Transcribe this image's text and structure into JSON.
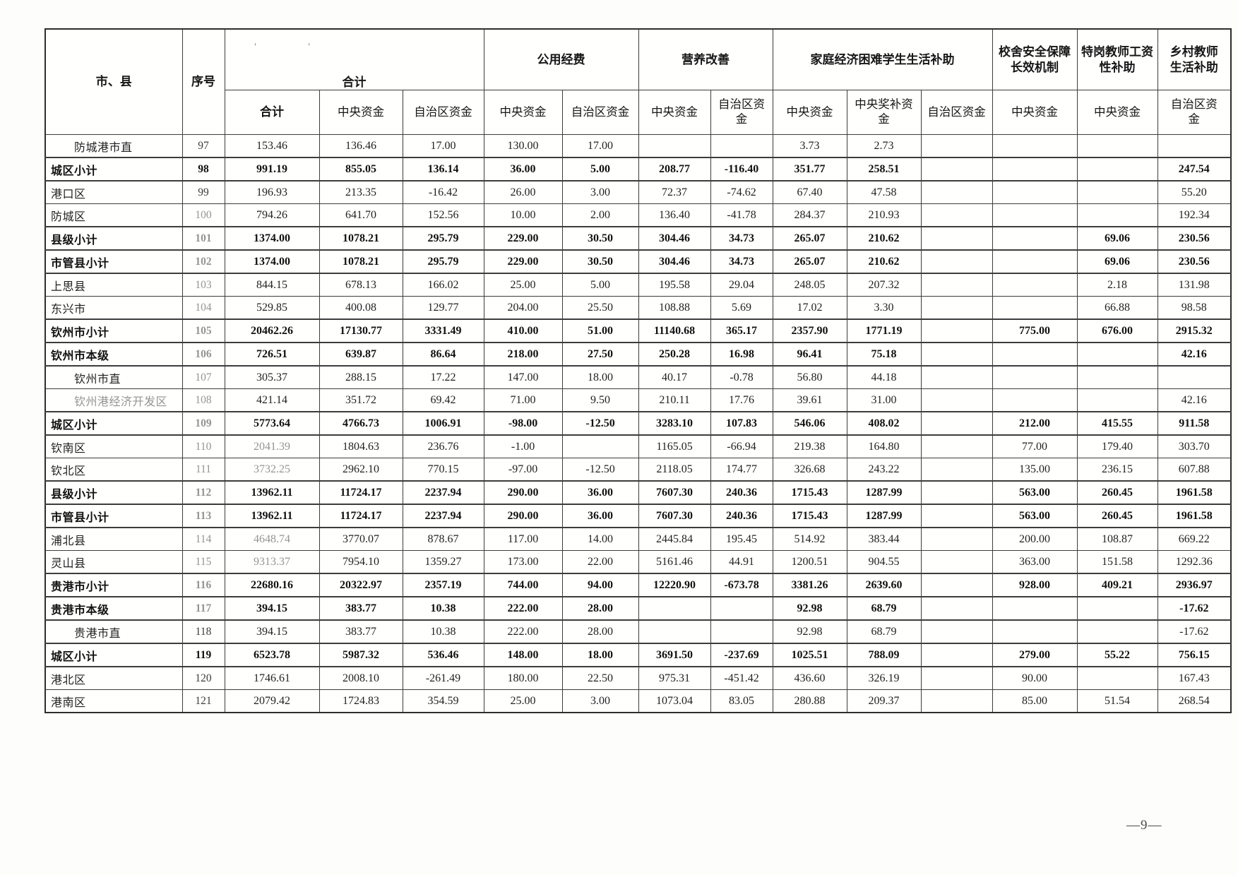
{
  "page": {
    "number": "—9—"
  },
  "header": {
    "region_col": "市、县",
    "seq_col": "序号",
    "tick1": "'",
    "tick2": "'",
    "groups": [
      {
        "label": "合计",
        "cols": 3
      },
      {
        "label": "公用经费",
        "cols": 2
      },
      {
        "label": "营养改善",
        "cols": 2
      },
      {
        "label": "家庭经济困难学生生活补助",
        "cols": 3
      },
      {
        "label": "校舍安全保障\n长效机制",
        "cols": 1
      },
      {
        "label": "特岗教师工资\n性补助",
        "cols": 1
      },
      {
        "label": "乡村教师\n生活补助",
        "cols": 1
      }
    ],
    "sub_labels": [
      "合计",
      "中央资金",
      "自治区资金",
      "中央资金",
      "自治区资金",
      "中央资金",
      "自治区资\n金",
      "中央资金",
      "中央奖补资\n金",
      "自治区资金",
      "中央资金",
      "中央资金",
      "自治区资\n金"
    ]
  },
  "rows": [
    {
      "name": "防城港市直",
      "seq": "97",
      "indent": true,
      "bold": false,
      "faded": [],
      "values": [
        "153.46",
        "136.46",
        "17.00",
        "130.00",
        "17.00",
        "",
        "",
        "3.73",
        "2.73",
        "",
        "",
        "",
        ""
      ]
    },
    {
      "name": "城区小计",
      "seq": "98",
      "indent": false,
      "bold": true,
      "faded": [],
      "values": [
        "991.19",
        "855.05",
        "136.14",
        "36.00",
        "5.00",
        "208.77",
        "-116.40",
        "351.77",
        "258.51",
        "",
        "",
        "",
        "247.54"
      ]
    },
    {
      "name": "港口区",
      "seq": "99",
      "indent": false,
      "bold": false,
      "faded": [],
      "values": [
        "196.93",
        "213.35",
        "-16.42",
        "26.00",
        "3.00",
        "72.37",
        "-74.62",
        "67.40",
        "47.58",
        "",
        "",
        "",
        "55.20"
      ]
    },
    {
      "name": "防城区",
      "seq": "100",
      "indent": false,
      "bold": false,
      "faded": [
        "seq"
      ],
      "values": [
        "794.26",
        "641.70",
        "152.56",
        "10.00",
        "2.00",
        "136.40",
        "-41.78",
        "284.37",
        "210.93",
        "",
        "",
        "",
        "192.34"
      ]
    },
    {
      "name": "县级小计",
      "seq": "101",
      "indent": false,
      "bold": true,
      "faded": [
        "seq"
      ],
      "values": [
        "1374.00",
        "1078.21",
        "295.79",
        "229.00",
        "30.50",
        "304.46",
        "34.73",
        "265.07",
        "210.62",
        "",
        "",
        "69.06",
        "230.56"
      ]
    },
    {
      "name": "市管县小计",
      "seq": "102",
      "indent": false,
      "bold": true,
      "faded": [
        "seq"
      ],
      "values": [
        "1374.00",
        "1078.21",
        "295.79",
        "229.00",
        "30.50",
        "304.46",
        "34.73",
        "265.07",
        "210.62",
        "",
        "",
        "69.06",
        "230.56"
      ]
    },
    {
      "name": "上思县",
      "seq": "103",
      "indent": false,
      "bold": false,
      "faded": [
        "seq"
      ],
      "values": [
        "844.15",
        "678.13",
        "166.02",
        "25.00",
        "5.00",
        "195.58",
        "29.04",
        "248.05",
        "207.32",
        "",
        "",
        "2.18",
        "131.98"
      ]
    },
    {
      "name": "东兴市",
      "seq": "104",
      "indent": false,
      "bold": false,
      "faded": [
        "seq"
      ],
      "values": [
        "529.85",
        "400.08",
        "129.77",
        "204.00",
        "25.50",
        "108.88",
        "5.69",
        "17.02",
        "3.30",
        "",
        "",
        "66.88",
        "98.58"
      ]
    },
    {
      "name": "钦州市小计",
      "seq": "105",
      "indent": false,
      "bold": true,
      "faded": [
        "seq"
      ],
      "values": [
        "20462.26",
        "17130.77",
        "3331.49",
        "410.00",
        "51.00",
        "11140.68",
        "365.17",
        "2357.90",
        "1771.19",
        "",
        "775.00",
        "676.00",
        "2915.32"
      ]
    },
    {
      "name": "钦州市本级",
      "seq": "106",
      "indent": false,
      "bold": true,
      "faded": [
        "seq"
      ],
      "values": [
        "726.51",
        "639.87",
        "86.64",
        "218.00",
        "27.50",
        "250.28",
        "16.98",
        "96.41",
        "75.18",
        "",
        "",
        "",
        "42.16"
      ]
    },
    {
      "name": "钦州市直",
      "seq": "107",
      "indent": true,
      "bold": false,
      "faded": [
        "seq"
      ],
      "values": [
        "305.37",
        "288.15",
        "17.22",
        "147.00",
        "18.00",
        "40.17",
        "-0.78",
        "56.80",
        "44.18",
        "",
        "",
        "",
        ""
      ]
    },
    {
      "name": "钦州港经济开发区",
      "seq": "108",
      "indent": true,
      "bold": false,
      "faded": [
        "seq",
        "name"
      ],
      "values": [
        "421.14",
        "351.72",
        "69.42",
        "71.00",
        "9.50",
        "210.11",
        "17.76",
        "39.61",
        "31.00",
        "",
        "",
        "",
        "42.16"
      ]
    },
    {
      "name": "城区小计",
      "seq": "109",
      "indent": false,
      "bold": true,
      "faded": [
        "seq"
      ],
      "values": [
        "5773.64",
        "4766.73",
        "1006.91",
        "-98.00",
        "-12.50",
        "3283.10",
        "107.83",
        "546.06",
        "408.02",
        "",
        "212.00",
        "415.55",
        "911.58"
      ]
    },
    {
      "name": "钦南区",
      "seq": "110",
      "indent": false,
      "bold": false,
      "faded": [
        "seq",
        "v0"
      ],
      "values": [
        "2041.39",
        "1804.63",
        "236.76",
        "-1.00",
        "",
        "1165.05",
        "-66.94",
        "219.38",
        "164.80",
        "",
        "77.00",
        "179.40",
        "303.70"
      ]
    },
    {
      "name": "钦北区",
      "seq": "111",
      "indent": false,
      "bold": false,
      "faded": [
        "seq",
        "v0"
      ],
      "values": [
        "3732.25",
        "2962.10",
        "770.15",
        "-97.00",
        "-12.50",
        "2118.05",
        "174.77",
        "326.68",
        "243.22",
        "",
        "135.00",
        "236.15",
        "607.88"
      ]
    },
    {
      "name": "县级小计",
      "seq": "112",
      "indent": false,
      "bold": true,
      "faded": [
        "seq"
      ],
      "values": [
        "13962.11",
        "11724.17",
        "2237.94",
        "290.00",
        "36.00",
        "7607.30",
        "240.36",
        "1715.43",
        "1287.99",
        "",
        "563.00",
        "260.45",
        "1961.58"
      ]
    },
    {
      "name": "市管县小计",
      "seq": "113",
      "indent": false,
      "bold": true,
      "faded": [
        "seq"
      ],
      "values": [
        "13962.11",
        "11724.17",
        "2237.94",
        "290.00",
        "36.00",
        "7607.30",
        "240.36",
        "1715.43",
        "1287.99",
        "",
        "563.00",
        "260.45",
        "1961.58"
      ]
    },
    {
      "name": "浦北县",
      "seq": "114",
      "indent": false,
      "bold": false,
      "faded": [
        "seq",
        "v0"
      ],
      "values": [
        "4648.74",
        "3770.07",
        "878.67",
        "117.00",
        "14.00",
        "2445.84",
        "195.45",
        "514.92",
        "383.44",
        "",
        "200.00",
        "108.87",
        "669.22"
      ]
    },
    {
      "name": "灵山县",
      "seq": "115",
      "indent": false,
      "bold": false,
      "faded": [
        "seq",
        "v0"
      ],
      "values": [
        "9313.37",
        "7954.10",
        "1359.27",
        "173.00",
        "22.00",
        "5161.46",
        "44.91",
        "1200.51",
        "904.55",
        "",
        "363.00",
        "151.58",
        "1292.36"
      ]
    },
    {
      "name": "贵港市小计",
      "seq": "116",
      "indent": false,
      "bold": true,
      "faded": [
        "seq"
      ],
      "values": [
        "22680.16",
        "20322.97",
        "2357.19",
        "744.00",
        "94.00",
        "12220.90",
        "-673.78",
        "3381.26",
        "2639.60",
        "",
        "928.00",
        "409.21",
        "2936.97"
      ]
    },
    {
      "name": "贵港市本级",
      "seq": "117",
      "indent": false,
      "bold": true,
      "faded": [
        "seq"
      ],
      "values": [
        "394.15",
        "383.77",
        "10.38",
        "222.00",
        "28.00",
        "",
        "",
        "92.98",
        "68.79",
        "",
        "",
        "",
        "-17.62"
      ]
    },
    {
      "name": "贵港市直",
      "seq": "118",
      "indent": true,
      "bold": false,
      "faded": [],
      "values": [
        "394.15",
        "383.77",
        "10.38",
        "222.00",
        "28.00",
        "",
        "",
        "92.98",
        "68.79",
        "",
        "",
        "",
        "-17.62"
      ]
    },
    {
      "name": "城区小计",
      "seq": "119",
      "indent": false,
      "bold": true,
      "faded": [],
      "values": [
        "6523.78",
        "5987.32",
        "536.46",
        "148.00",
        "18.00",
        "3691.50",
        "-237.69",
        "1025.51",
        "788.09",
        "",
        "279.00",
        "55.22",
        "756.15"
      ]
    },
    {
      "name": "港北区",
      "seq": "120",
      "indent": false,
      "bold": false,
      "faded": [],
      "values": [
        "1746.61",
        "2008.10",
        "-261.49",
        "180.00",
        "22.50",
        "975.31",
        "-451.42",
        "436.60",
        "326.19",
        "",
        "90.00",
        "",
        "167.43"
      ]
    },
    {
      "name": "港南区",
      "seq": "121",
      "indent": false,
      "bold": false,
      "faded": [],
      "values": [
        "2079.42",
        "1724.83",
        "354.59",
        "25.00",
        "3.00",
        "1073.04",
        "83.05",
        "280.88",
        "209.37",
        "",
        "85.00",
        "51.54",
        "268.54"
      ]
    }
  ]
}
